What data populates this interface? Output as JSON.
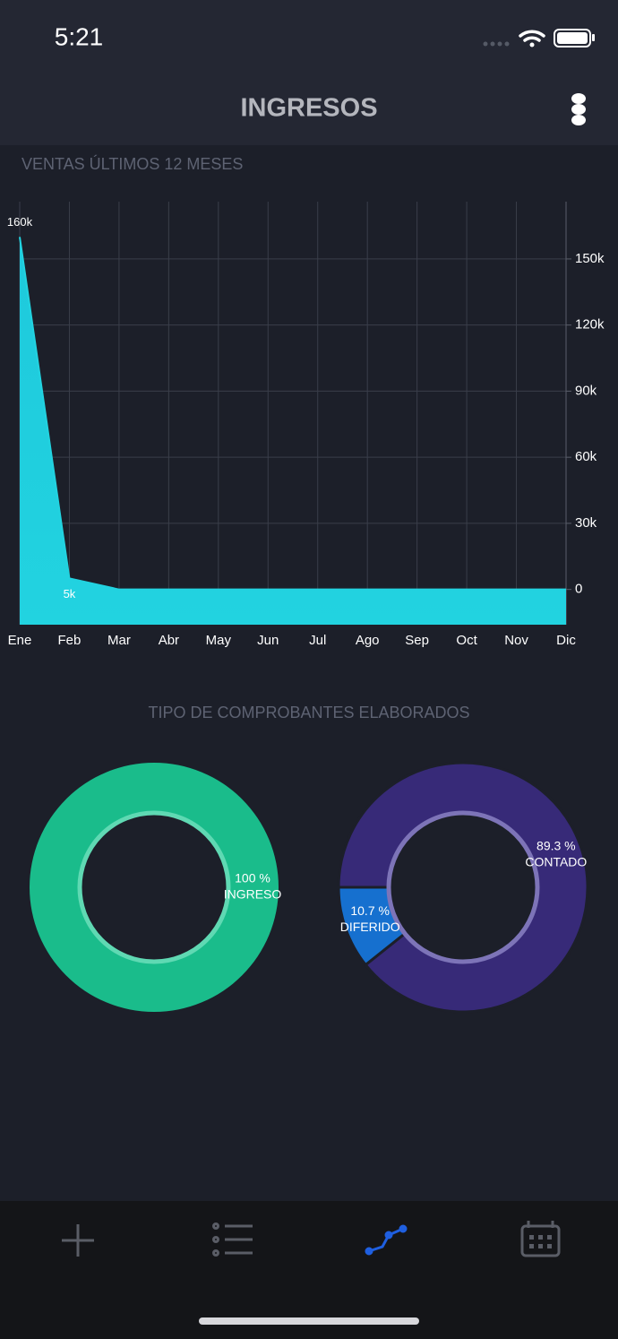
{
  "status_bar": {
    "time": "5:21"
  },
  "header": {
    "title": "INGRESOS"
  },
  "chart_data": [
    {
      "type": "area",
      "title": "VENTAS ÚLTIMOS 12 MESES",
      "categories": [
        "Ene",
        "Feb",
        "Mar",
        "Abr",
        "May",
        "Jun",
        "Jul",
        "Ago",
        "Sep",
        "Oct",
        "Nov",
        "Dic"
      ],
      "values": [
        160000,
        5000,
        0,
        0,
        0,
        0,
        0,
        0,
        0,
        0,
        0,
        0
      ],
      "value_labels": [
        "160k",
        "5k",
        null,
        null,
        null,
        null,
        null,
        null,
        null,
        null,
        null,
        null
      ],
      "color": "#22d3e0",
      "ylim": [
        -16000,
        176000
      ],
      "yticks": [
        0,
        {
          "value": 30000,
          "label": "30k"
        },
        {
          "value": 60000,
          "label": "60k"
        },
        {
          "value": 90000,
          "label": "90k"
        },
        {
          "value": 120000,
          "label": "120k"
        },
        {
          "value": 150000,
          "label": "150k"
        }
      ],
      "grid": true
    },
    {
      "type": "pie",
      "title": "TIPO DE COMPROBANTES ELABORADOS",
      "categories": [
        "INGRESO"
      ],
      "values": [
        100
      ],
      "value_labels": [
        "100 %"
      ],
      "colors": [
        "#1abc8b"
      ]
    },
    {
      "type": "pie",
      "categories": [
        "DIFERIDO",
        "CONTADO"
      ],
      "values": [
        10.7,
        89.3
      ],
      "value_labels": [
        "10.7 %",
        "89.3 %"
      ],
      "colors": [
        "#1670cf",
        "#372a78"
      ]
    }
  ]
}
